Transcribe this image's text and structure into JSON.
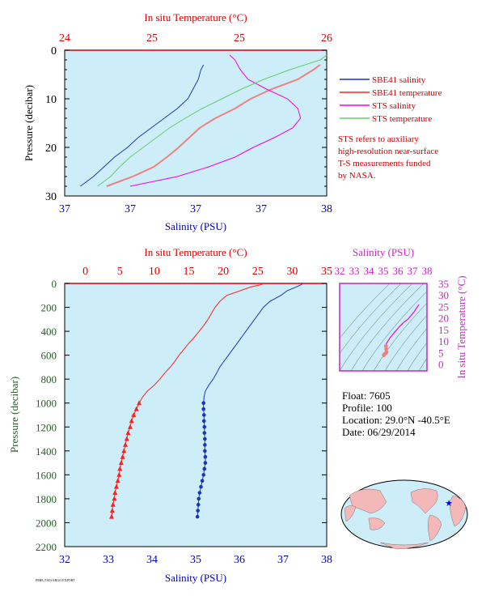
{
  "colors": {
    "bg": "#ffffff",
    "plot_bg": "#cdeef8",
    "temp_axis": "#dd0000",
    "sal_axis": "#0000bb",
    "pressure_axis": "#2a5a2a",
    "sbe_sal": "#1a36b8",
    "sbe_temp": "#ff2020",
    "sts_sal": "#ee00ee",
    "sts_temp": "#66cc66",
    "salmon": "#f08080",
    "ts_axis": "#cc22cc",
    "contour": "#556677",
    "land": "#f5b8b8",
    "ocean": "#cdeef8"
  },
  "top_panel": {
    "temp_axis_label": "In situ Temperature (°C)",
    "temp_ticks": [
      "24",
      "25",
      "25",
      "26"
    ],
    "sal_axis_label": "Salinity (PSU)",
    "sal_ticks": [
      "37",
      "37",
      "37",
      "37",
      "38"
    ],
    "pressure_label": "Pressure (decibar)",
    "pressure_ticks": [
      "0",
      "10",
      "20",
      "30"
    ]
  },
  "legend": {
    "items": [
      {
        "label": "SBE41 salinity",
        "color": "#1a36b8"
      },
      {
        "label": "SBE41 temperature",
        "color": "#ff2020"
      },
      {
        "label": "STS salinity",
        "color": "#ee00ee"
      },
      {
        "label": "STS temperature",
        "color": "#66cc66"
      }
    ],
    "note": [
      "STS refers to auxiliary",
      "high-resolution near-surface",
      "T-S measurements funded",
      "by NASA."
    ]
  },
  "main_panel": {
    "temp_axis_label": "In situ Temperature (°C)",
    "temp_ticks": [
      "0",
      "5",
      "10",
      "15",
      "20",
      "25",
      "30",
      "35"
    ],
    "sal_axis_label": "Salinity (PSU)",
    "sal_ticks": [
      "32",
      "33",
      "34",
      "35",
      "36",
      "37",
      "38"
    ],
    "pressure_label": "Pressure (decibar)",
    "pressure_ticks": [
      "0",
      "200",
      "400",
      "600",
      "800",
      "1000",
      "1200",
      "1400",
      "1600",
      "1800",
      "2000",
      "2200"
    ]
  },
  "ts_panel": {
    "sal_axis_label": "Salinity (PSU)",
    "sal_ticks": [
      "32",
      "33",
      "34",
      "35",
      "36",
      "37",
      "38"
    ],
    "temp_axis_label": "In situ Temperature (°C)",
    "temp_ticks": [
      "0",
      "5",
      "10",
      "15",
      "20",
      "25",
      "30",
      "35"
    ]
  },
  "info": {
    "float": "Float:  7605",
    "profile": "Profile:  100",
    "location": "Location:  29.0°N  -40.5°E",
    "date": "Date:  06/29/2014"
  },
  "footer": {
    "small_text": "PMEL/TAO/ARGO EXPORT"
  },
  "chart_data": [
    {
      "type": "line",
      "title": "",
      "y_axis": {
        "label": "Pressure (decibar)",
        "ylim": [
          30,
          0
        ]
      },
      "x_axis_top": {
        "label": "In situ Temperature (°C)",
        "xlim": [
          24,
          26
        ]
      },
      "x_axis_bottom": {
        "label": "Salinity (PSU)",
        "xlim": [
          36.75,
          37.75
        ]
      },
      "legend_placement": "right",
      "series": [
        {
          "name": "SBE41 salinity",
          "axis": "salinity",
          "pressure": [
            3,
            4,
            6,
            8,
            10,
            12,
            14,
            16,
            18,
            20,
            22,
            24,
            26,
            28
          ],
          "values": [
            37.28,
            37.27,
            37.26,
            37.24,
            37.22,
            37.18,
            37.13,
            37.08,
            37.03,
            36.99,
            36.94,
            36.9,
            36.86,
            36.81
          ]
        },
        {
          "name": "SBE41 temperature",
          "axis": "temperature",
          "pressure": [
            3,
            4,
            6,
            8,
            10,
            12,
            14,
            16,
            18,
            20,
            22,
            24,
            26,
            28
          ],
          "values": [
            25.95,
            25.9,
            25.78,
            25.58,
            25.42,
            25.3,
            25.15,
            25.03,
            24.95,
            24.87,
            24.78,
            24.68,
            24.52,
            24.32
          ]
        },
        {
          "name": "STS salinity",
          "axis": "salinity",
          "pressure": [
            1,
            2,
            4,
            6,
            8,
            10,
            12,
            14,
            16,
            18,
            20,
            22,
            24,
            26,
            28
          ],
          "values": [
            37.38,
            37.4,
            37.42,
            37.45,
            37.52,
            37.6,
            37.64,
            37.65,
            37.62,
            37.55,
            37.47,
            37.4,
            37.3,
            37.18,
            37.0
          ]
        },
        {
          "name": "STS temperature",
          "axis": "temperature",
          "pressure": [
            1,
            2,
            4,
            6,
            8,
            10,
            12,
            14,
            16,
            18,
            20,
            22,
            24,
            26,
            28
          ],
          "values": [
            26.0,
            25.95,
            25.72,
            25.52,
            25.35,
            25.2,
            25.05,
            24.92,
            24.8,
            24.7,
            24.6,
            24.5,
            24.42,
            24.35,
            24.25
          ]
        }
      ]
    },
    {
      "type": "line",
      "title": "",
      "y_axis": {
        "label": "Pressure (decibar)",
        "ylim": [
          2200,
          0
        ]
      },
      "x_axis_top": {
        "label": "In situ Temperature (°C)",
        "xlim": [
          -3,
          35
        ]
      },
      "x_axis_bottom": {
        "label": "Salinity (PSU)",
        "xlim": [
          32,
          38
        ]
      },
      "series": [
        {
          "name": "Temperature",
          "axis": "temperature",
          "pressure": [
            0,
            10,
            30,
            60,
            100,
            150,
            200,
            250,
            300,
            350,
            400,
            450,
            500,
            550,
            600,
            650,
            700,
            750,
            800,
            850,
            900,
            950,
            1000,
            1050,
            1100,
            1150,
            1200,
            1250,
            1300,
            1350,
            1400,
            1450,
            1500,
            1550,
            1600,
            1650,
            1700,
            1750,
            1800,
            1850,
            1900,
            1950
          ],
          "values": [
            25.8,
            25.5,
            24.0,
            22.5,
            20.5,
            19.5,
            18.8,
            18.3,
            17.8,
            17.2,
            16.5,
            15.8,
            15.0,
            14.3,
            13.6,
            13.0,
            12.3,
            11.5,
            10.8,
            10.0,
            9.0,
            8.3,
            7.8,
            7.4,
            7.0,
            6.7,
            6.5,
            6.2,
            6.0,
            5.8,
            5.6,
            5.4,
            5.2,
            5.0,
            4.9,
            4.7,
            4.5,
            4.3,
            4.2,
            4.0,
            3.9,
            3.8
          ],
          "markers_from_pressure": 1000
        },
        {
          "name": "Salinity",
          "axis": "salinity",
          "pressure": [
            0,
            10,
            30,
            60,
            100,
            150,
            200,
            250,
            300,
            350,
            400,
            450,
            500,
            550,
            600,
            650,
            700,
            750,
            800,
            850,
            900,
            950,
            1000,
            1050,
            1100,
            1150,
            1200,
            1250,
            1300,
            1350,
            1400,
            1450,
            1500,
            1550,
            1600,
            1650,
            1700,
            1750,
            1800,
            1850,
            1900,
            1950
          ],
          "values": [
            37.45,
            37.42,
            37.3,
            37.1,
            36.95,
            36.7,
            36.55,
            36.45,
            36.35,
            36.25,
            36.15,
            36.05,
            35.95,
            35.85,
            35.75,
            35.65,
            35.55,
            35.48,
            35.4,
            35.3,
            35.22,
            35.19,
            35.18,
            35.18,
            35.19,
            35.19,
            35.2,
            35.2,
            35.21,
            35.21,
            35.21,
            35.22,
            35.22,
            35.2,
            35.18,
            35.15,
            35.12,
            35.09,
            35.07,
            35.06,
            35.05,
            35.04
          ],
          "markers_from_pressure": 1000
        }
      ]
    },
    {
      "type": "scatter",
      "title": "",
      "x_axis": {
        "label": "Salinity (PSU)",
        "xlim": [
          32,
          38
        ]
      },
      "y_axis": {
        "label": "In situ Temperature (°C)",
        "ylim": [
          -3,
          35
        ]
      },
      "series": [
        {
          "name": "T-S profile",
          "salinity": [
            37.45,
            37.1,
            36.7,
            36.35,
            36.05,
            35.75,
            35.48,
            35.22,
            35.18,
            35.2,
            35.22,
            35.18,
            35.07,
            35.04
          ],
          "temperature": [
            25.8,
            22.5,
            19.5,
            17.8,
            15.8,
            13.6,
            11.5,
            9.0,
            7.8,
            6.5,
            5.2,
            4.7,
            4.2,
            3.8
          ]
        }
      ]
    }
  ]
}
